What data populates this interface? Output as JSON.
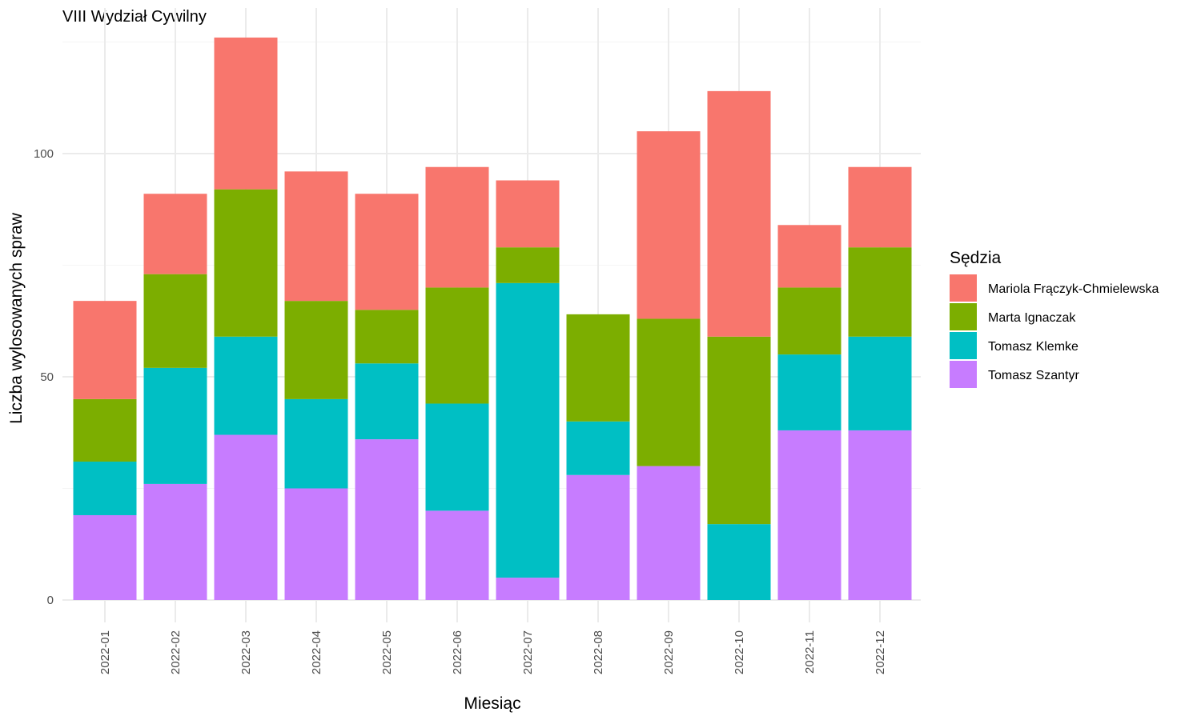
{
  "chart_data": {
    "type": "bar",
    "stacked": true,
    "title": "VIII Wydział Cywilny",
    "xlabel": "Miesiąc",
    "ylabel": "Liczba wylosowanych spraw",
    "ylim": [
      0,
      128
    ],
    "yticks": [
      0,
      50,
      100
    ],
    "grid": true,
    "legend": {
      "title": "Sędzia",
      "position": "right"
    },
    "categories": [
      "2022-01",
      "2022-02",
      "2022-03",
      "2022-04",
      "2022-05",
      "2022-06",
      "2022-07",
      "2022-08",
      "2022-09",
      "2022-10",
      "2022-11",
      "2022-12"
    ],
    "series": [
      {
        "name": "Mariola Frączyk-Chmielewska",
        "color": "#F8766D",
        "values": [
          22,
          18,
          34,
          29,
          26,
          27,
          15,
          0,
          42,
          55,
          14,
          18
        ]
      },
      {
        "name": "Marta Ignaczak",
        "color": "#7CAE00",
        "values": [
          14,
          21,
          33,
          22,
          12,
          26,
          8,
          24,
          33,
          42,
          15,
          20
        ]
      },
      {
        "name": "Tomasz Klemke",
        "color": "#00BFC4",
        "values": [
          12,
          26,
          22,
          20,
          17,
          24,
          66,
          12,
          0,
          17,
          17,
          21
        ]
      },
      {
        "name": "Tomasz Szantyr",
        "color": "#C77CFF",
        "values": [
          19,
          26,
          37,
          25,
          36,
          20,
          5,
          28,
          30,
          0,
          38,
          38
        ]
      }
    ]
  }
}
